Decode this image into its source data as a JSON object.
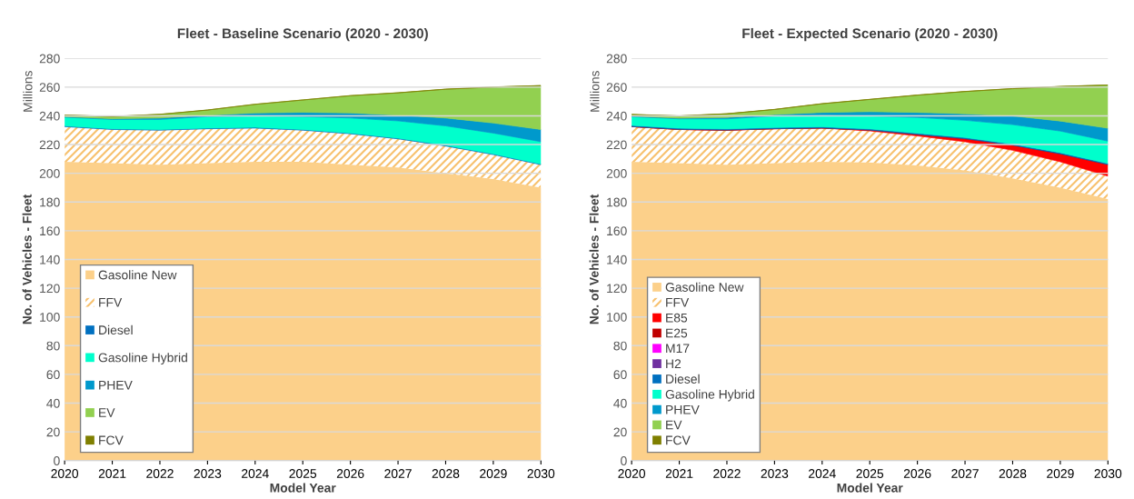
{
  "chart_data": [
    {
      "type": "area",
      "stacked": true,
      "title": "Fleet - Baseline Scenario (2020 - 2030)",
      "xlabel": "Model Year",
      "ylabel": "No. of Vehicles - Fleet",
      "annotations": [
        "Millions"
      ],
      "x": [
        2020,
        2021,
        2022,
        2023,
        2024,
        2025,
        2026,
        2027,
        2028,
        2029,
        2030
      ],
      "xlim": [
        2020,
        2030
      ],
      "xticks": [
        2020,
        2021,
        2022,
        2023,
        2024,
        2025,
        2026,
        2027,
        2028,
        2029,
        2030
      ],
      "ylim": [
        0,
        280
      ],
      "yticks": [
        0,
        20,
        40,
        60,
        80,
        100,
        120,
        140,
        160,
        180,
        200,
        220,
        240,
        260,
        280
      ],
      "grid": "y",
      "legend": "bottom left",
      "series": [
        {
          "name": "Gasoline New",
          "color": "#fcd08a",
          "values": [
            208,
            207,
            206,
            207,
            208,
            208,
            206,
            204,
            200,
            196,
            190
          ]
        },
        {
          "name": "FFV",
          "color": "#f7c16e",
          "values": [
            24.5,
            23.5,
            24,
            24,
            23.5,
            22,
            21.5,
            20,
            19,
            17,
            16
          ]
        },
        {
          "name": "Diesel",
          "color": "#0070c0",
          "values": [
            0.5,
            0.5,
            0.5,
            0.5,
            0.5,
            0.5,
            0.5,
            0.5,
            0.5,
            0.5,
            0.5
          ]
        },
        {
          "name": "Gasoline Hybrid",
          "color": "#00ffcc",
          "values": [
            6,
            6.5,
            7,
            8,
            8,
            9,
            10.5,
            12,
            13.5,
            14.5,
            15.5
          ]
        },
        {
          "name": "PHEV",
          "color": "#0099cc",
          "values": [
            0.5,
            0.5,
            1,
            1,
            2,
            3,
            3.5,
            4,
            5.5,
            7,
            8.5
          ]
        },
        {
          "name": "EV",
          "color": "#92d050",
          "values": [
            1,
            1.5,
            2.5,
            3.5,
            6,
            8.5,
            12,
            15.5,
            20,
            25,
            30.5
          ]
        },
        {
          "name": "FCV",
          "color": "#7f7f00",
          "values": [
            0.1,
            0.1,
            0.1,
            0.1,
            0.1,
            0.1,
            0.1,
            0.1,
            0.1,
            0.1,
            0.1
          ]
        }
      ]
    },
    {
      "type": "area",
      "stacked": true,
      "title": "Fleet - Expected Scenario (2020 - 2030)",
      "xlabel": "Model Year",
      "ylabel": "No. of Vehicles - Fleet",
      "annotations": [
        "Millions"
      ],
      "x": [
        2020,
        2021,
        2022,
        2023,
        2024,
        2025,
        2026,
        2027,
        2028,
        2029,
        2030
      ],
      "xlim": [
        2020,
        2030
      ],
      "xticks": [
        2020,
        2021,
        2022,
        2023,
        2024,
        2025,
        2026,
        2027,
        2028,
        2029,
        2030
      ],
      "ylim": [
        0,
        280
      ],
      "yticks": [
        0,
        20,
        40,
        60,
        80,
        100,
        120,
        140,
        160,
        180,
        200,
        220,
        240,
        260,
        280
      ],
      "grid": "y",
      "legend": "bottom left",
      "series": [
        {
          "name": "Gasoline New",
          "color": "#fcd08a",
          "values": [
            208,
            207,
            206,
            207,
            208,
            207.5,
            205.5,
            202,
            196.5,
            190,
            182
          ]
        },
        {
          "name": "FFV",
          "color": "#f7c16e",
          "values": [
            24.5,
            23.5,
            24,
            24,
            23.5,
            22,
            20.5,
            20,
            19.5,
            18,
            16
          ]
        },
        {
          "name": "E85",
          "color": "#ff0000",
          "values": [
            0,
            0,
            0,
            0,
            0,
            0.5,
            1,
            2,
            3.5,
            5.5,
            8
          ]
        },
        {
          "name": "E25",
          "color": "#c00000",
          "values": [
            0.1,
            0.1,
            0.1,
            0.1,
            0.1,
            0.1,
            0.1,
            0.1,
            0.1,
            0.1,
            0.1
          ]
        },
        {
          "name": "M17",
          "color": "#ff00ff",
          "values": [
            null,
            null,
            null,
            null,
            null,
            null,
            null,
            null,
            null,
            null,
            null
          ]
        },
        {
          "name": "H2",
          "color": "#7030a0",
          "values": [
            null,
            null,
            null,
            null,
            null,
            null,
            null,
            null,
            null,
            null,
            null
          ]
        },
        {
          "name": "Diesel",
          "color": "#0070c0",
          "values": [
            0.8,
            0.8,
            0.8,
            0.8,
            0.8,
            0.8,
            0.8,
            0.8,
            0.8,
            0.8,
            0.8
          ]
        },
        {
          "name": "Gasoline Hybrid",
          "color": "#00ffcc",
          "values": [
            6,
            6.5,
            7,
            8,
            8,
            9,
            11,
            12,
            13.5,
            15,
            15.5
          ]
        },
        {
          "name": "PHEV",
          "color": "#0099cc",
          "values": [
            0.5,
            0.5,
            1,
            1,
            2,
            3,
            3.5,
            4.5,
            6,
            7,
            9
          ]
        },
        {
          "name": "EV",
          "color": "#92d050",
          "values": [
            1,
            1.5,
            2.5,
            3.5,
            6,
            8.5,
            12,
            15.5,
            19,
            24,
            30
          ]
        },
        {
          "name": "FCV",
          "color": "#7f7f00",
          "values": [
            0.1,
            0.1,
            0.1,
            0.1,
            0.1,
            0.1,
            0.1,
            0.1,
            0.1,
            0.1,
            0.1
          ]
        }
      ]
    }
  ]
}
